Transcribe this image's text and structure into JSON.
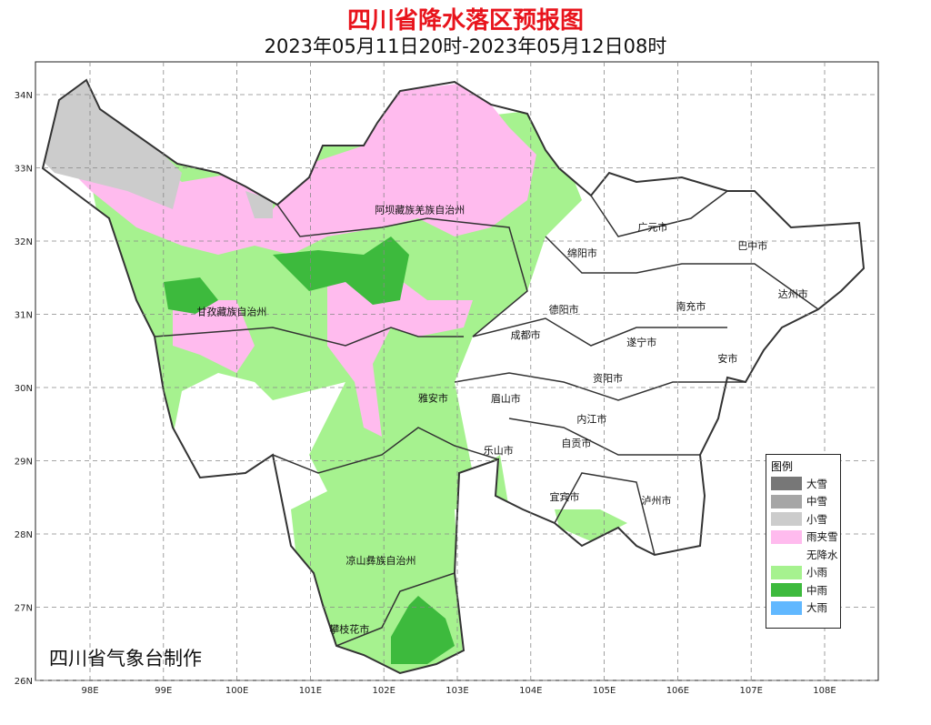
{
  "title": "四川省降水落区预报图",
  "subtitle": "2023年05月11日20时-2023年05月12日08时",
  "footer": "四川省气象台制作",
  "axes": {
    "lon_ticks": [
      "98E",
      "99E",
      "100E",
      "101E",
      "102E",
      "103E",
      "104E",
      "105E",
      "106E",
      "107E",
      "108E"
    ],
    "lat_ticks": [
      "34N",
      "33N",
      "32N",
      "31N",
      "30N",
      "29N",
      "28N",
      "27N",
      "26N"
    ]
  },
  "legend": {
    "title": "图例",
    "items": [
      {
        "label": "大雪",
        "color": "#777777"
      },
      {
        "label": "中雪",
        "color": "#a6a6a6"
      },
      {
        "label": "小雪",
        "color": "#cccccc"
      },
      {
        "label": "雨夹雪",
        "color": "#ffbbee"
      },
      {
        "label": "无降水",
        "color": "#ffffff"
      },
      {
        "label": "小雨",
        "color": "#a6f28f"
      },
      {
        "label": "中雨",
        "color": "#3dba3d"
      },
      {
        "label": "大雨",
        "color": "#61b8ff"
      }
    ]
  },
  "regions": [
    {
      "name": "阿坝藏族羌族自治州",
      "lon": 102.49,
      "lat": 32.43
    },
    {
      "name": "绵阳市",
      "lon": 104.7,
      "lat": 31.84
    },
    {
      "name": "广元市",
      "lon": 105.66,
      "lat": 32.19
    },
    {
      "name": "巴中市",
      "lon": 107.02,
      "lat": 31.94
    },
    {
      "name": "达州市",
      "lon": 107.57,
      "lat": 31.28
    },
    {
      "name": "南充市",
      "lon": 106.18,
      "lat": 31.11
    },
    {
      "name": "德阳市",
      "lon": 104.45,
      "lat": 31.07
    },
    {
      "name": "甘孜藏族自治州",
      "lon": 99.93,
      "lat": 31.04
    },
    {
      "name": "成都市",
      "lon": 103.93,
      "lat": 30.72
    },
    {
      "name": "遂宁市",
      "lon": 105.51,
      "lat": 30.62
    },
    {
      "name": "安市",
      "lon": 106.68,
      "lat": 30.4
    },
    {
      "name": "资阳市",
      "lon": 105.05,
      "lat": 30.13
    },
    {
      "name": "雅安市",
      "lon": 102.67,
      "lat": 29.86
    },
    {
      "name": "眉山市",
      "lon": 103.66,
      "lat": 29.85
    },
    {
      "name": "内江市",
      "lon": 104.83,
      "lat": 29.57
    },
    {
      "name": "自贡市",
      "lon": 104.62,
      "lat": 29.24
    },
    {
      "name": "乐山市",
      "lon": 103.56,
      "lat": 29.14
    },
    {
      "name": "宜宾市",
      "lon": 104.46,
      "lat": 28.51
    },
    {
      "name": "泸州市",
      "lon": 105.71,
      "lat": 28.46
    },
    {
      "name": "凉山彝族自治州",
      "lon": 101.96,
      "lat": 27.64
    },
    {
      "name": "攀枝花市",
      "lon": 101.53,
      "lat": 26.7
    }
  ]
}
